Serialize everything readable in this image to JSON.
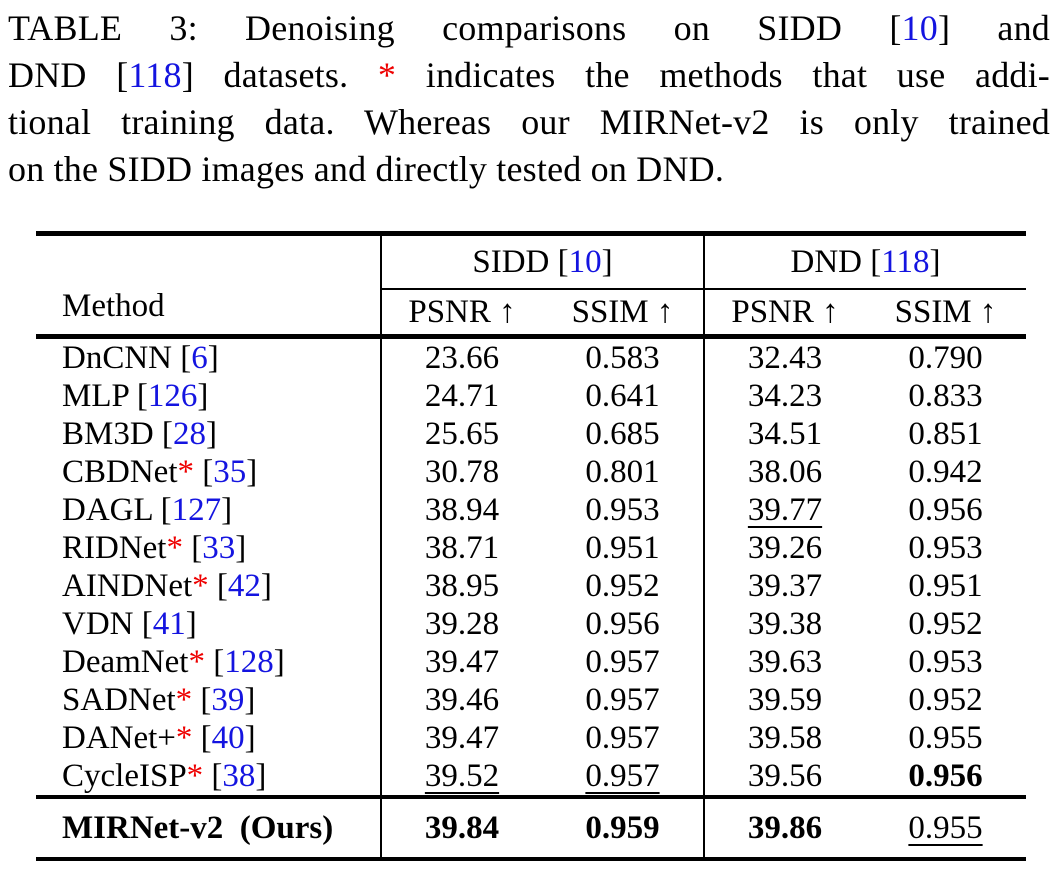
{
  "colors": {
    "citation_blue": "#1414e0",
    "star_red": "#ee0000",
    "text": "#000000",
    "background": "#ffffff",
    "rule": "#000000"
  },
  "caption": {
    "label": "TABLE 3",
    "lines": [
      {
        "segments": [
          {
            "t": "TABLE 3: Denoising comparisons on SIDD ["
          },
          {
            "t": "10",
            "s": "cite"
          },
          {
            "t": "] and"
          }
        ]
      },
      {
        "segments": [
          {
            "t": "DND ["
          },
          {
            "t": "118",
            "s": "cite"
          },
          {
            "t": "] datasets. "
          },
          {
            "t": "*",
            "s": "star"
          },
          {
            "t": " indicates the methods that use addi-"
          }
        ]
      },
      {
        "segments": [
          {
            "t": "tional training data. Whereas our MIRNet-v2 is only trained"
          }
        ]
      },
      {
        "segments": [
          {
            "t": "on the SIDD images and directly tested on DND."
          }
        ]
      }
    ]
  },
  "table": {
    "method_header": "Method",
    "groups": [
      {
        "name": "SIDD",
        "segments": [
          {
            "t": "SIDD ["
          },
          {
            "t": "10",
            "s": "cite"
          },
          {
            "t": "]"
          }
        ]
      },
      {
        "name": "DND",
        "segments": [
          {
            "t": "DND ["
          },
          {
            "t": "118",
            "s": "cite"
          },
          {
            "t": "]"
          }
        ]
      }
    ],
    "sub_headers": [
      "PSNR ↑",
      "SSIM ↑",
      "PSNR ↑",
      "SSIM ↑"
    ],
    "rows": [
      {
        "method": [
          {
            "t": "DnCNN ["
          },
          {
            "t": "6",
            "s": "cite"
          },
          {
            "t": "]"
          }
        ],
        "values": [
          {
            "v": "23.66"
          },
          {
            "v": "0.583"
          },
          {
            "v": "32.43"
          },
          {
            "v": "0.790"
          }
        ]
      },
      {
        "method": [
          {
            "t": "MLP ["
          },
          {
            "t": "126",
            "s": "cite"
          },
          {
            "t": "]"
          }
        ],
        "values": [
          {
            "v": "24.71"
          },
          {
            "v": "0.641"
          },
          {
            "v": "34.23"
          },
          {
            "v": "0.833"
          }
        ]
      },
      {
        "method": [
          {
            "t": "BM3D ["
          },
          {
            "t": "28",
            "s": "cite"
          },
          {
            "t": "]"
          }
        ],
        "values": [
          {
            "v": "25.65"
          },
          {
            "v": "0.685"
          },
          {
            "v": "34.51"
          },
          {
            "v": "0.851"
          }
        ]
      },
      {
        "method": [
          {
            "t": "CBDNet"
          },
          {
            "t": "*",
            "s": "star"
          },
          {
            "t": " ["
          },
          {
            "t": "35",
            "s": "cite"
          },
          {
            "t": "]"
          }
        ],
        "values": [
          {
            "v": "30.78"
          },
          {
            "v": "0.801"
          },
          {
            "v": "38.06"
          },
          {
            "v": "0.942"
          }
        ]
      },
      {
        "method": [
          {
            "t": "DAGL ["
          },
          {
            "t": "127",
            "s": "cite"
          },
          {
            "t": "]"
          }
        ],
        "values": [
          {
            "v": "38.94"
          },
          {
            "v": "0.953"
          },
          {
            "v": "39.77",
            "u": true
          },
          {
            "v": "0.956"
          }
        ]
      },
      {
        "method": [
          {
            "t": "RIDNet"
          },
          {
            "t": "*",
            "s": "star"
          },
          {
            "t": " ["
          },
          {
            "t": "33",
            "s": "cite"
          },
          {
            "t": "]"
          }
        ],
        "values": [
          {
            "v": "38.71"
          },
          {
            "v": "0.951"
          },
          {
            "v": "39.26"
          },
          {
            "v": "0.953"
          }
        ]
      },
      {
        "method": [
          {
            "t": "AINDNet"
          },
          {
            "t": "*",
            "s": "star"
          },
          {
            "t": " ["
          },
          {
            "t": "42",
            "s": "cite"
          },
          {
            "t": "]"
          }
        ],
        "values": [
          {
            "v": "38.95"
          },
          {
            "v": "0.952"
          },
          {
            "v": "39.37"
          },
          {
            "v": "0.951"
          }
        ]
      },
      {
        "method": [
          {
            "t": "VDN ["
          },
          {
            "t": "41",
            "s": "cite"
          },
          {
            "t": "]"
          }
        ],
        "values": [
          {
            "v": "39.28"
          },
          {
            "v": "0.956"
          },
          {
            "v": "39.38"
          },
          {
            "v": "0.952"
          }
        ]
      },
      {
        "method": [
          {
            "t": "DeamNet"
          },
          {
            "t": "*",
            "s": "star"
          },
          {
            "t": " ["
          },
          {
            "t": "128",
            "s": "cite"
          },
          {
            "t": "]"
          }
        ],
        "values": [
          {
            "v": "39.47"
          },
          {
            "v": "0.957"
          },
          {
            "v": "39.63"
          },
          {
            "v": "0.953"
          }
        ]
      },
      {
        "method": [
          {
            "t": "SADNet"
          },
          {
            "t": "*",
            "s": "star"
          },
          {
            "t": " ["
          },
          {
            "t": "39",
            "s": "cite"
          },
          {
            "t": "]"
          }
        ],
        "values": [
          {
            "v": "39.46"
          },
          {
            "v": "0.957"
          },
          {
            "v": "39.59"
          },
          {
            "v": "0.952"
          }
        ]
      },
      {
        "method": [
          {
            "t": "DANet+"
          },
          {
            "t": "*",
            "s": "star"
          },
          {
            "t": " ["
          },
          {
            "t": "40",
            "s": "cite"
          },
          {
            "t": "]"
          }
        ],
        "values": [
          {
            "v": "39.47"
          },
          {
            "v": "0.957"
          },
          {
            "v": "39.58"
          },
          {
            "v": "0.955"
          }
        ]
      },
      {
        "method": [
          {
            "t": "CycleISP"
          },
          {
            "t": "*",
            "s": "star"
          },
          {
            "t": " ["
          },
          {
            "t": "38",
            "s": "cite"
          },
          {
            "t": "]"
          }
        ],
        "values": [
          {
            "v": "39.52",
            "u": true
          },
          {
            "v": "0.957",
            "u": true
          },
          {
            "v": "39.56"
          },
          {
            "v": "0.956",
            "b": true
          }
        ]
      }
    ],
    "final_row": {
      "method": [
        {
          "t": "MIRNet-v2 (Ours)"
        }
      ],
      "values": [
        {
          "v": "39.84",
          "b": true
        },
        {
          "v": "0.959",
          "b": true
        },
        {
          "v": "39.86",
          "b": true
        },
        {
          "v": "0.955",
          "u": true
        }
      ]
    }
  }
}
